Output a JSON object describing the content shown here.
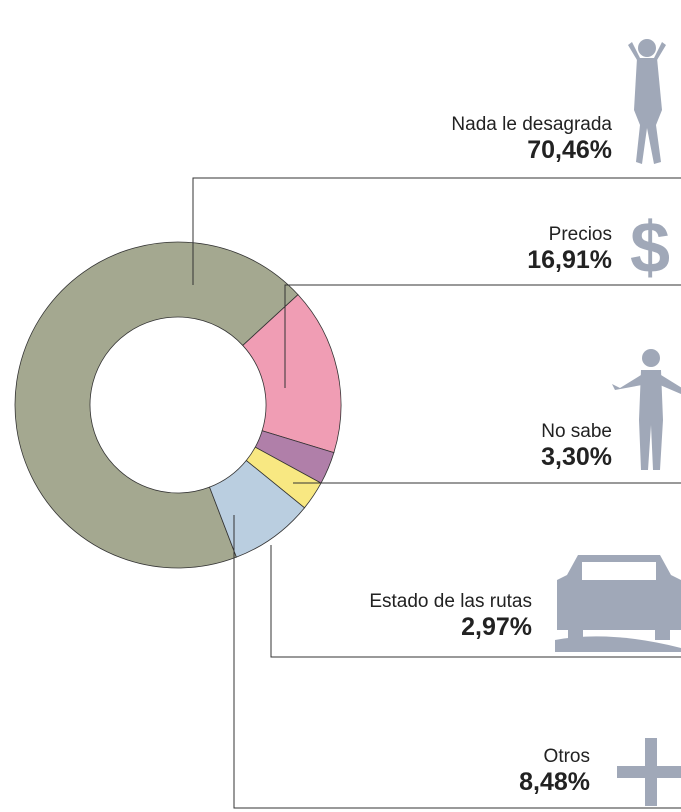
{
  "chart_data": {
    "type": "pie",
    "categories": [
      "Nada le desagrada",
      "Precios",
      "No sabe",
      "Estado de las rutas",
      "Otros"
    ],
    "values": [
      70.46,
      16.91,
      3.3,
      2.97,
      8.48
    ],
    "value_labels": [
      "70,46%",
      "16,91%",
      "3,30%",
      "2,97%",
      "8,48%"
    ],
    "colors": [
      "#a4a890",
      "#f09db4",
      "#b07fa9",
      "#f8e882",
      "#bacee0"
    ],
    "donut": true
  }
}
